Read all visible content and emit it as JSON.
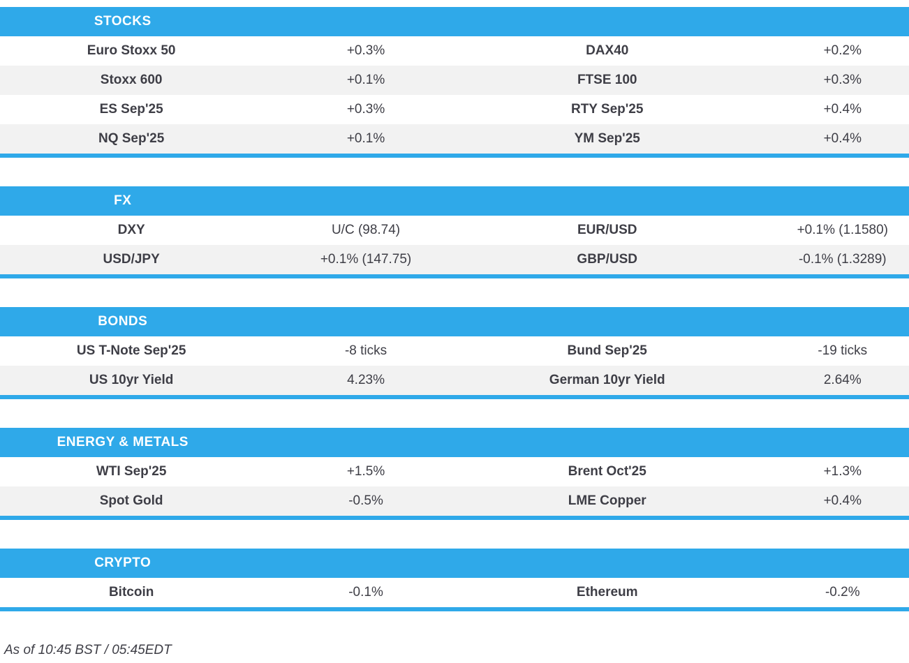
{
  "colors": {
    "header_blue": "#2FA9E9",
    "row_alt": "#F2F2F2",
    "text": "#3E3E46"
  },
  "sections": [
    {
      "title": "STOCKS",
      "rows": [
        [
          "Euro Stoxx 50",
          "+0.3%",
          "DAX40",
          "+0.2%"
        ],
        [
          "Stoxx 600",
          "+0.1%",
          "FTSE 100",
          "+0.3%"
        ],
        [
          "ES Sep'25",
          "+0.3%",
          "RTY Sep'25",
          "+0.4%"
        ],
        [
          "NQ Sep'25",
          "+0.1%",
          "YM Sep'25",
          "+0.4%"
        ]
      ]
    },
    {
      "title": "FX",
      "rows": [
        [
          "DXY",
          "U/C (98.74)",
          "EUR/USD",
          "+0.1% (1.1580)"
        ],
        [
          "USD/JPY",
          "+0.1% (147.75)",
          "GBP/USD",
          "-0.1% (1.3289)"
        ]
      ]
    },
    {
      "title": "BONDS",
      "rows": [
        [
          "US T-Note Sep'25",
          "-8 ticks",
          "Bund Sep'25",
          "-19 ticks"
        ],
        [
          "US 10yr Yield",
          "4.23%",
          "German 10yr Yield",
          "2.64%"
        ]
      ]
    },
    {
      "title": "ENERGY & METALS",
      "rows": [
        [
          "WTI Sep'25",
          "+1.5%",
          "Brent Oct'25",
          "+1.3%"
        ],
        [
          "Spot Gold",
          "-0.5%",
          "LME Copper",
          "+0.4%"
        ]
      ]
    },
    {
      "title": "CRYPTO",
      "rows": [
        [
          "Bitcoin",
          "-0.1%",
          "Ethereum",
          "-0.2%"
        ]
      ]
    }
  ],
  "footer": {
    "as_of": "As of 10:45 BST / 05:45EDT"
  }
}
